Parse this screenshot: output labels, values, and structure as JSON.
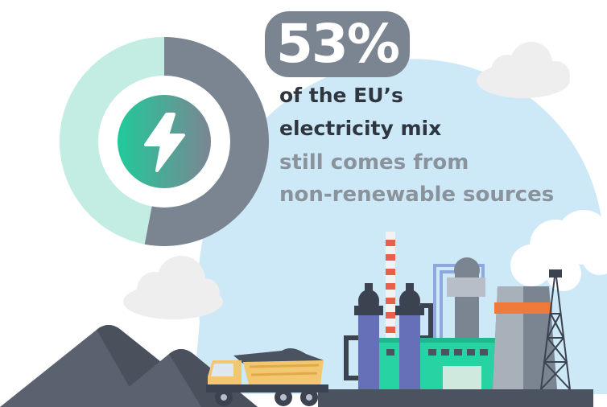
{
  "headline": {
    "percentage": "53%",
    "line1": "of the EU’s",
    "line2": "electricity mix",
    "line3": "still comes from",
    "line4": "non-renewable sources"
  },
  "colors": {
    "donut_light": "#c3ede3",
    "donut_dark": "#7b8592",
    "badge": "#7b8592",
    "dark_text": "#2f3640",
    "grey_text": "#8a929c",
    "sky": "#cde8f7",
    "factory_green": "#27d3a2",
    "truck": "#f3c770",
    "coal": "#4b5360"
  },
  "icons": [
    "lightning-bolt-icon"
  ],
  "donut": {
    "non_renewable_fraction": 0.53
  }
}
